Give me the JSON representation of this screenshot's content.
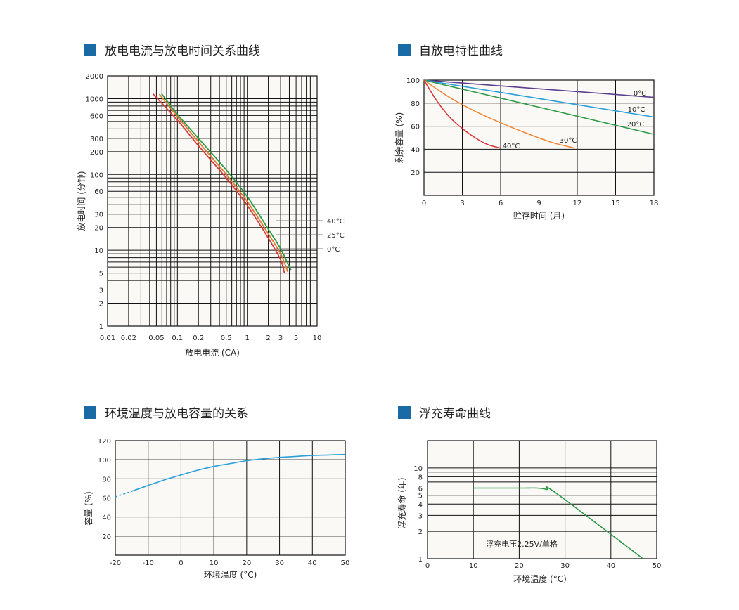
{
  "colors": {
    "accent": "#1a6aa6",
    "plot_bg": "#fbf9f6",
    "grid": "#111111"
  },
  "titles": {
    "c1": "放电电流与放电时间关系曲线",
    "c2": "自放电特性曲线",
    "c3": "环境温度与放电容量的关系",
    "c4": "浮充寿命曲线"
  },
  "chart_data": [
    {
      "type": "line",
      "title": "放电电流与放电时间关系曲线",
      "xlabel": "放电电流 (CA)",
      "ylabel": "放电时间 (分钟)",
      "xscale": "log",
      "yscale": "log",
      "xlim": [
        0.01,
        10
      ],
      "ylim": [
        1,
        2000
      ],
      "xticks": [
        0.01,
        0.02,
        0.05,
        0.1,
        0.2,
        0.5,
        1,
        2,
        3,
        5,
        10
      ],
      "xtick_labels": [
        "0.01",
        "0.02",
        "0.05",
        "0.1",
        "0.2",
        "0.5",
        "1",
        "2",
        "3",
        "5",
        "10"
      ],
      "yticks": [
        1,
        2,
        3,
        5,
        10,
        20,
        30,
        60,
        100,
        200,
        300,
        600,
        1000,
        2000
      ],
      "ytick_labels": [
        "1",
        "2",
        "3",
        "5",
        "10",
        "20",
        "30",
        "60",
        "100",
        "200",
        "300",
        "600",
        "1000",
        "2000"
      ],
      "series": [
        {
          "name": "40°C",
          "color": "#2e9a48",
          "x": [
            0.06,
            0.1,
            0.2,
            0.5,
            1,
            2,
            3,
            4.2
          ],
          "y": [
            1150,
            620,
            300,
            115,
            51,
            19,
            10.5,
            5.5
          ]
        },
        {
          "name": "25°C",
          "color": "#e07a2e",
          "x": [
            0.055,
            0.1,
            0.2,
            0.5,
            1,
            2,
            3,
            3.8
          ],
          "y": [
            1150,
            580,
            270,
            100,
            44,
            16.5,
            9,
            5.2
          ]
        },
        {
          "name": "0°C",
          "color": "#d93a3a",
          "x": [
            0.045,
            0.1,
            0.2,
            0.5,
            1,
            2,
            3,
            3.4
          ],
          "y": [
            1150,
            520,
            240,
            90,
            39,
            14.5,
            7.5,
            5.0
          ]
        }
      ]
    },
    {
      "type": "line",
      "title": "自放电特性曲线",
      "xlabel": "贮存时间 (月)",
      "ylabel": "剩余容量 (%)",
      "xlim": [
        0,
        18
      ],
      "ylim": [
        0,
        100
      ],
      "xticks": [
        0,
        3,
        6,
        9,
        12,
        15,
        18
      ],
      "yticks": [
        20,
        40,
        60,
        80,
        100
      ],
      "series": [
        {
          "name": "0°C",
          "color": "#5b3f8f",
          "x": [
            0,
            18
          ],
          "y": [
            100,
            85
          ]
        },
        {
          "name": "10°C",
          "color": "#2b9fd9",
          "x": [
            0,
            18
          ],
          "y": [
            100,
            68
          ]
        },
        {
          "name": "20°C",
          "color": "#2e9a48",
          "x": [
            0,
            18
          ],
          "y": [
            100,
            53
          ]
        },
        {
          "name": "30°C",
          "color": "#ee8a3a",
          "x": [
            0,
            2,
            4,
            6,
            8,
            10,
            11.8
          ],
          "y": [
            100,
            85,
            73,
            63,
            54,
            46,
            41
          ]
        },
        {
          "name": "40°C",
          "color": "#d93a3a",
          "x": [
            0,
            1,
            2,
            3,
            4,
            5,
            6
          ],
          "y": [
            100,
            82,
            68,
            58,
            50,
            44,
            41
          ]
        }
      ]
    },
    {
      "type": "line",
      "title": "环境温度与放电容量的关系",
      "xlabel": "环境温度 (°C)",
      "ylabel": "容量 (%)",
      "xlim": [
        -20,
        50
      ],
      "ylim": [
        0,
        120
      ],
      "xticks": [
        -20,
        -10,
        0,
        10,
        20,
        30,
        40,
        50
      ],
      "yticks": [
        20,
        40,
        60,
        80,
        100,
        120
      ],
      "series": [
        {
          "name": "",
          "color": "#2b9fd9",
          "x": [
            -20,
            -15,
            -10,
            -5,
            0,
            5,
            10,
            15,
            20,
            25,
            30,
            35,
            40,
            45,
            50
          ],
          "y": [
            61,
            67,
            73,
            79,
            84,
            89,
            93,
            96,
            99,
            101,
            102.5,
            103.5,
            104.5,
            105,
            105.5
          ],
          "dashed_until": -15
        }
      ]
    },
    {
      "type": "line",
      "title": "浮充寿命曲线",
      "xlabel": "环境温度 (°C)",
      "ylabel": "浮充寿命 (年)",
      "yscale": "log",
      "xlim": [
        0,
        50
      ],
      "ylim": [
        1,
        20
      ],
      "xticks": [
        0,
        10,
        20,
        30,
        40,
        50
      ],
      "yticks": [
        1,
        2,
        3,
        4,
        5,
        6,
        8,
        10
      ],
      "annotation": "浮充电压2.25V/单格",
      "series": [
        {
          "name": "",
          "color": "#2e9a48",
          "x": [
            10,
            20,
            24,
            26,
            28,
            47
          ],
          "y": [
            6,
            6,
            6,
            5.8,
            5.3,
            1
          ]
        }
      ]
    }
  ]
}
